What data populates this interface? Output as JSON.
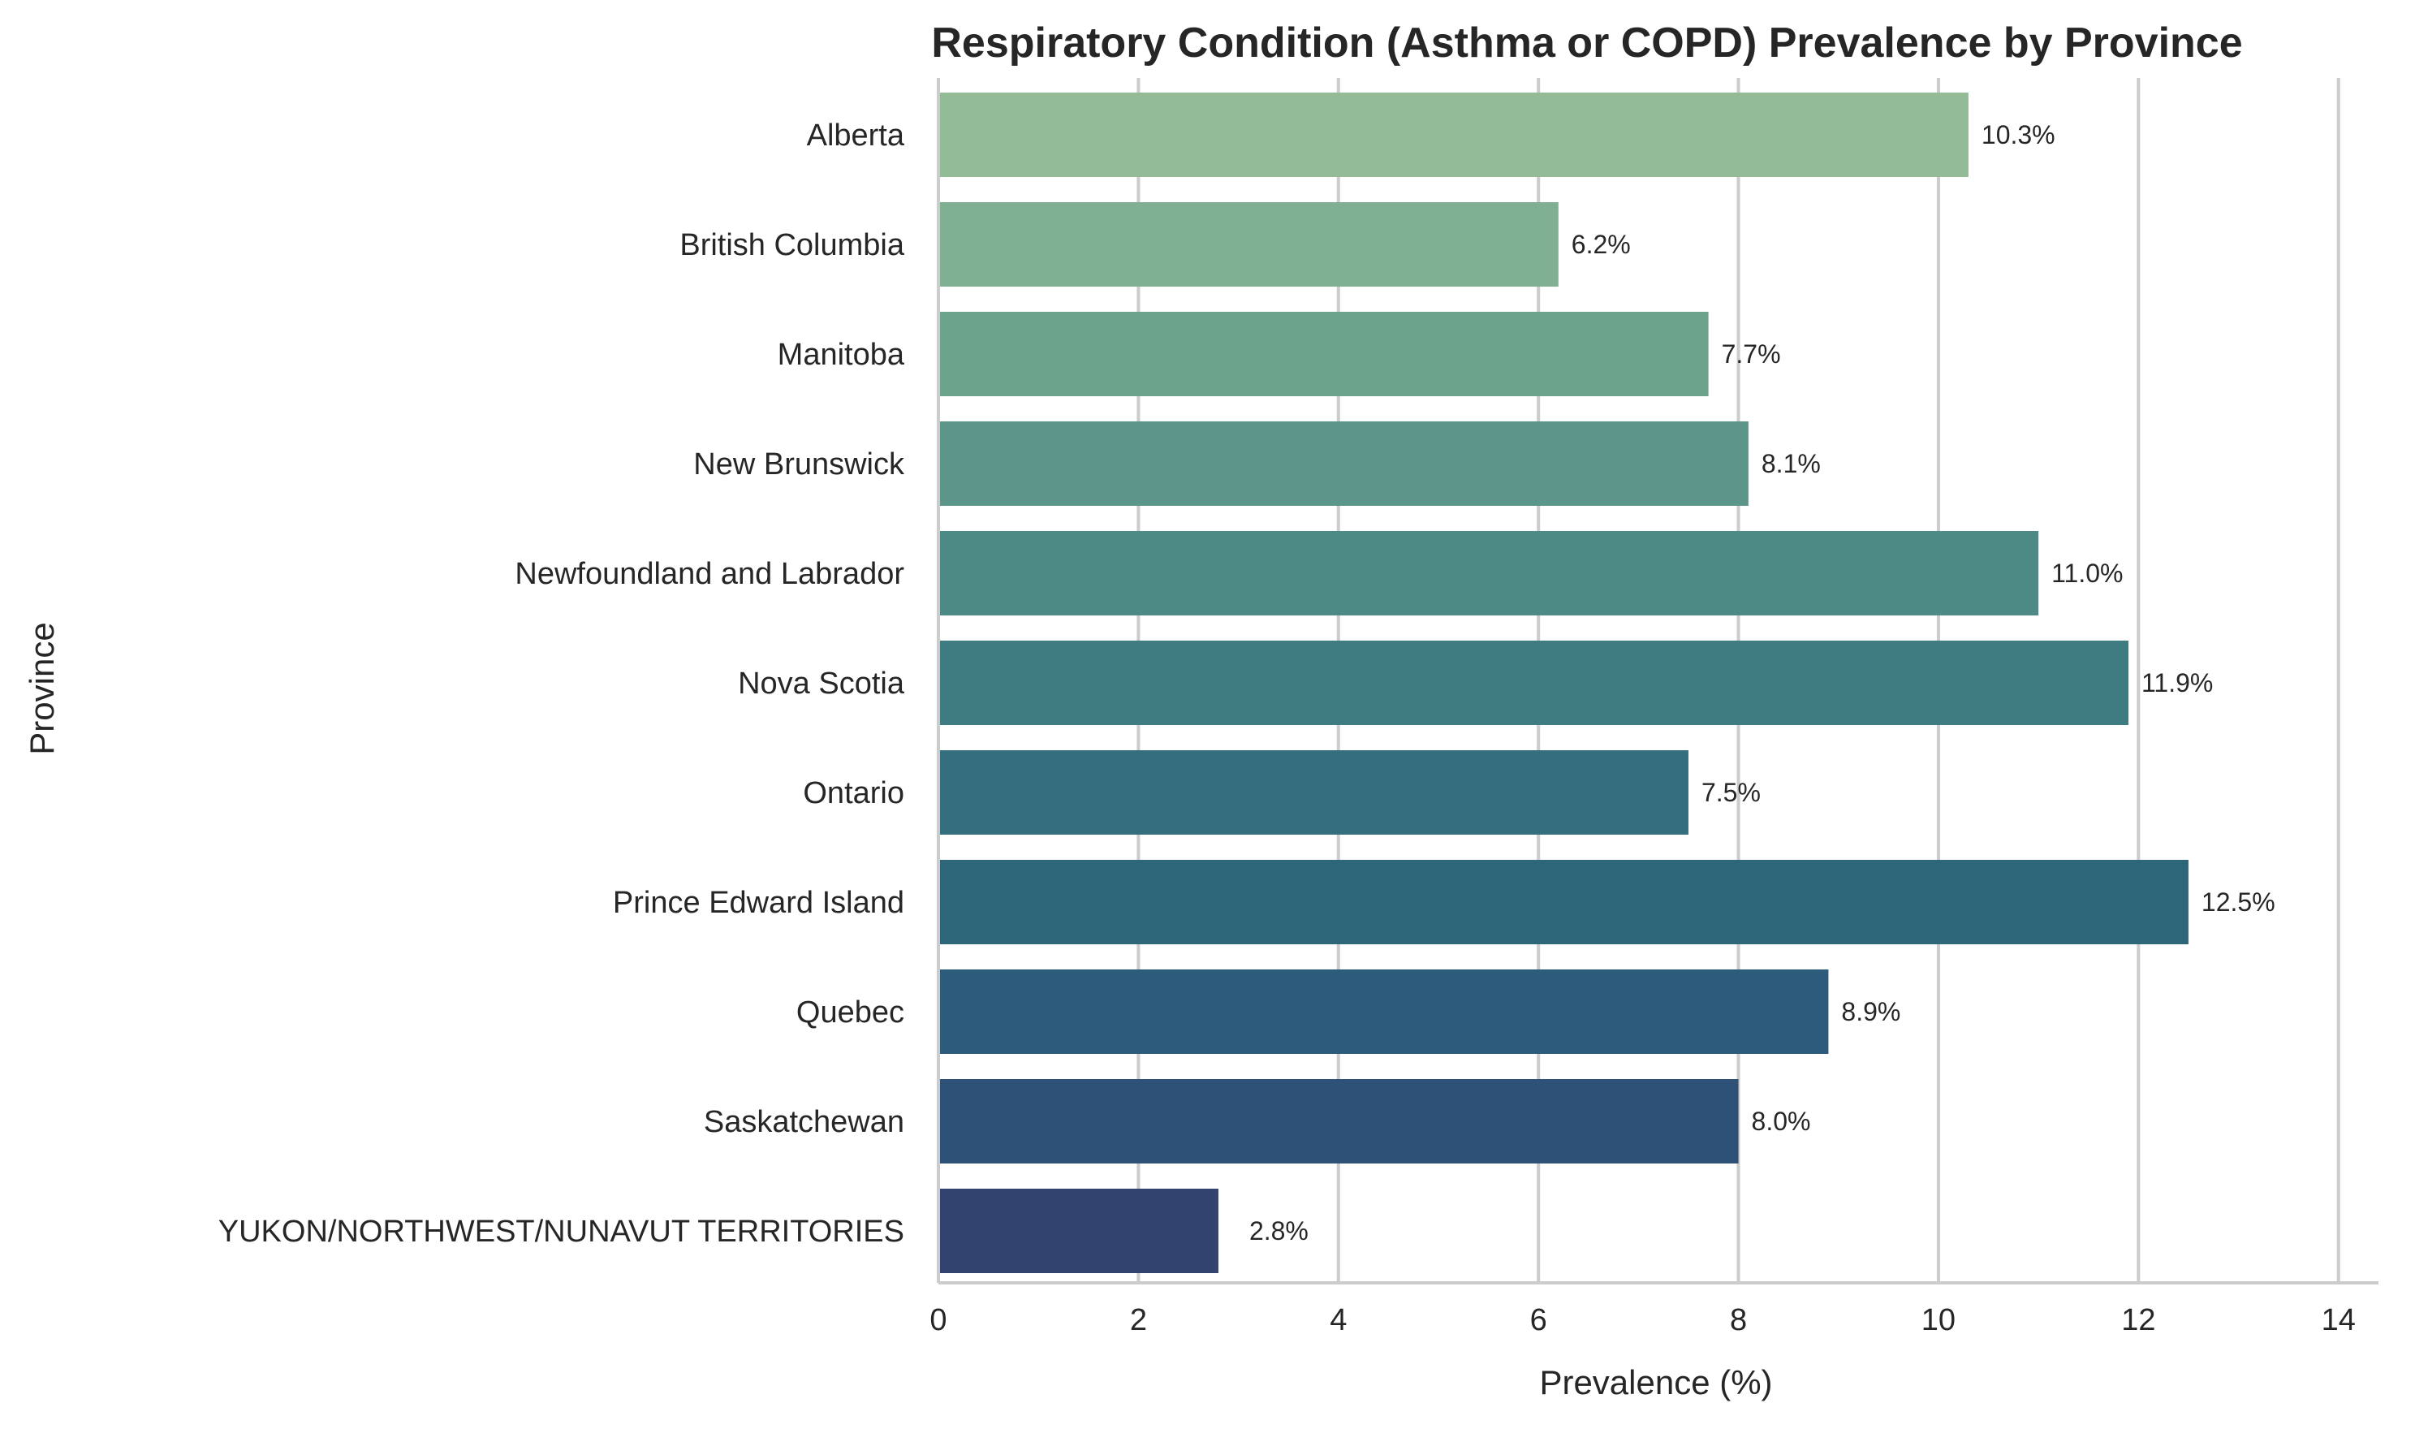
{
  "chart_data": {
    "type": "bar",
    "orientation": "horizontal",
    "title": "Respiratory Condition (Asthma or COPD) Prevalence by Province",
    "xlabel": "Prevalence (%)",
    "ylabel": "Province",
    "xlim": [
      0,
      14.4
    ],
    "xticks": [
      0,
      2,
      4,
      6,
      8,
      10,
      12,
      14
    ],
    "grid": "vertical",
    "value_suffix": "%",
    "categories": [
      "Alberta",
      "British Columbia",
      "Manitoba",
      "New Brunswick",
      "Newfoundland and Labrador",
      "Nova Scotia",
      "Ontario",
      "Prince Edward Island",
      "Quebec",
      "Saskatchewan",
      "YUKON/NORTHWEST/NUNAVUT TERRITORIES"
    ],
    "values": [
      10.3,
      6.2,
      7.7,
      8.1,
      11.0,
      11.9,
      7.5,
      12.5,
      8.9,
      8.0,
      2.8
    ],
    "data_labels": [
      "10.3%",
      "6.2%",
      "7.7%",
      "8.1%",
      "11.0%",
      "11.9%",
      "7.5%",
      "12.5%",
      "8.9%",
      "8.0%",
      "2.8%"
    ],
    "colors": [
      "#94bb97",
      "#80b094",
      "#6ba38d",
      "#5c968a",
      "#4d8a86",
      "#3f7c82",
      "#356f7d",
      "#2d6678",
      "#2c5b7b",
      "#2e5177",
      "#334370"
    ]
  }
}
